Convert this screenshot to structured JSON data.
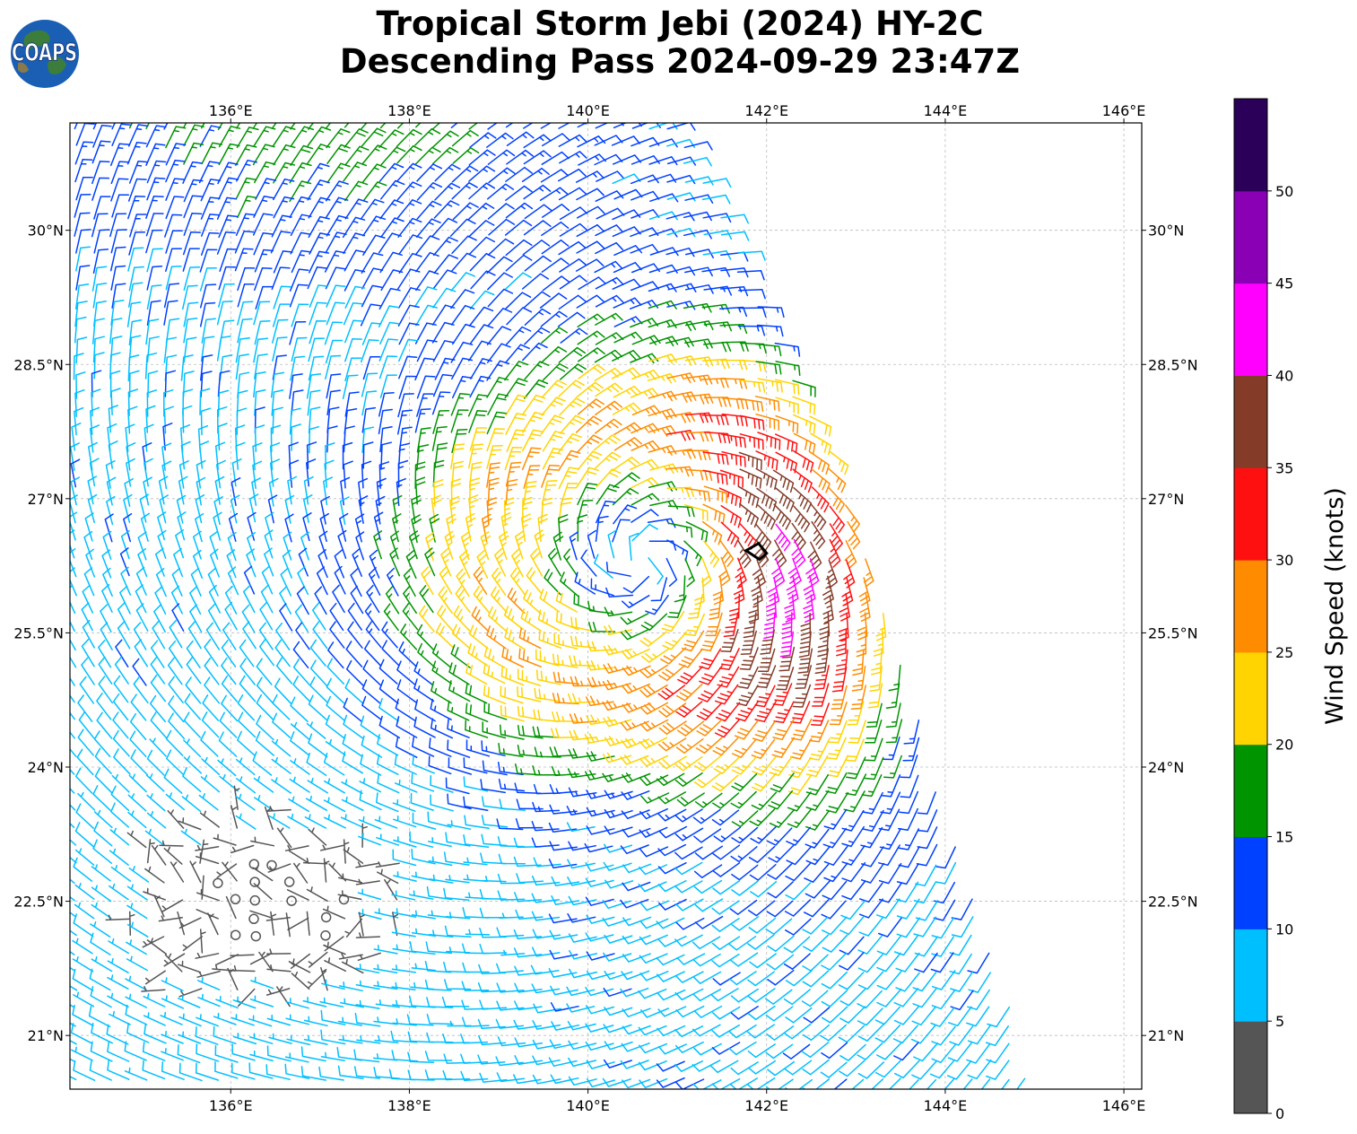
{
  "header": {
    "logo_text": "COAPS",
    "title_line_1": "Tropical Storm Jebi (2024) HY-2C",
    "title_line_2": "Descending Pass 2024-09-29 23:47Z"
  },
  "chart_data": {
    "type": "wind-barb-map",
    "title": "Tropical Storm Jebi (2024) HY-2C Descending Pass 2024-09-29 23:47Z",
    "x_ticks": [
      "136°E",
      "138°E",
      "140°E",
      "142°E",
      "144°E",
      "146°E"
    ],
    "x_tick_values": [
      136,
      138,
      140,
      142,
      144,
      146
    ],
    "y_ticks": [
      "21°N",
      "22.5°N",
      "24°N",
      "25.5°N",
      "27°N",
      "28.5°N",
      "30°N"
    ],
    "y_tick_values": [
      21,
      22.5,
      24,
      25.5,
      27,
      28.5,
      30
    ],
    "xlim": [
      134.2,
      146.2
    ],
    "ylim": [
      20.4,
      31.2
    ],
    "grid": true,
    "storm_center": {
      "lon": 140.6,
      "lat": 26.3
    },
    "best_track_marker": {
      "lon": 141.9,
      "lat": 26.4
    },
    "swath_edge": [
      [
        141.0,
        31.2
      ],
      [
        142.8,
        27.4
      ],
      [
        145.0,
        20.4
      ]
    ],
    "colorbar": {
      "label": "Wind Speed (knots)",
      "bins": [
        {
          "min": 0,
          "max": 5,
          "color": "#555555"
        },
        {
          "min": 5,
          "max": 10,
          "color": "#00bfff"
        },
        {
          "min": 10,
          "max": 15,
          "color": "#0040ff"
        },
        {
          "min": 15,
          "max": 20,
          "color": "#009400"
        },
        {
          "min": 20,
          "max": 25,
          "color": "#ffd400"
        },
        {
          "min": 25,
          "max": 30,
          "color": "#ff8c00"
        },
        {
          "min": 30,
          "max": 35,
          "color": "#ff1010"
        },
        {
          "min": 35,
          "max": 40,
          "color": "#843c29"
        },
        {
          "min": 40,
          "max": 45,
          "color": "#ff00ff"
        },
        {
          "min": 45,
          "max": 50,
          "color": "#8a00b5"
        },
        {
          "min": 50,
          "max": 55,
          "color": "#2b0058"
        }
      ],
      "tick_labels": [
        "0",
        "5",
        "10",
        "15",
        "20",
        "25",
        "30",
        "35",
        "40",
        "45",
        "50"
      ],
      "tick_values": [
        0,
        5,
        10,
        15,
        20,
        25,
        30,
        35,
        40,
        45,
        50
      ]
    }
  }
}
